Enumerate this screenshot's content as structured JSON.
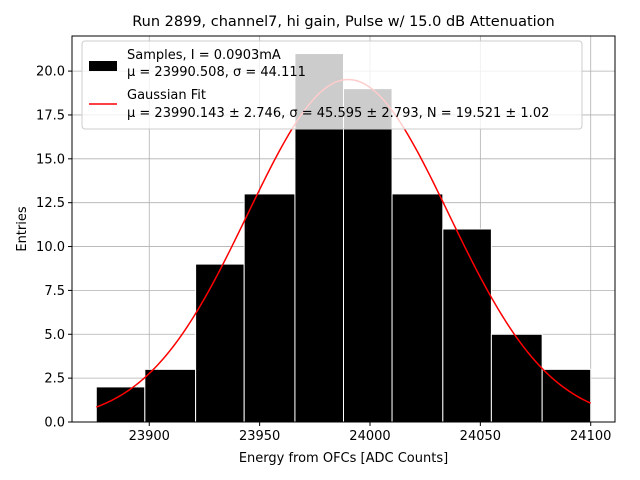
{
  "chart_data": {
    "type": "bar",
    "title": "Run 2899, channel7, hi gain, Pulse w/ 15.0 dB Attenuation",
    "xlabel": "Energy from OFCs [ADC Counts]",
    "ylabel": "Entries",
    "xlim": [
      23865,
      24111
    ],
    "ylim": [
      0,
      22
    ],
    "xticks": [
      23900,
      23950,
      24000,
      24050,
      24100
    ],
    "yticks": [
      0.0,
      2.5,
      5.0,
      7.5,
      10.0,
      12.5,
      15.0,
      17.5,
      20.0
    ],
    "grid": true,
    "legend_position": "top-left",
    "bins": [
      {
        "x0": 23876,
        "x1": 23898,
        "count": 2
      },
      {
        "x0": 23898,
        "x1": 23921,
        "count": 3
      },
      {
        "x0": 23921,
        "x1": 23943,
        "count": 9
      },
      {
        "x0": 23943,
        "x1": 23966,
        "count": 13
      },
      {
        "x0": 23966,
        "x1": 23988,
        "count": 21
      },
      {
        "x0": 23988,
        "x1": 24010,
        "count": 19
      },
      {
        "x0": 24010,
        "x1": 24033,
        "count": 13
      },
      {
        "x0": 24033,
        "x1": 24055,
        "count": 11
      },
      {
        "x0": 24055,
        "x1": 24078,
        "count": 5
      },
      {
        "x0": 24078,
        "x1": 24100,
        "count": 3
      }
    ],
    "fit": {
      "mu": 23990.143,
      "sigma": 45.595,
      "N": 19.521,
      "x_range": [
        23876,
        24100
      ]
    },
    "series": [
      {
        "name": "Samples, I = 0.0903mA",
        "detail": "μ = 23990.508, σ = 44.111",
        "color": "#000000"
      },
      {
        "name": "Gaussian Fit",
        "detail": "μ = 23990.143 ± 2.746, σ = 45.595 ± 2.793, N = 19.521 ± 1.02",
        "color": "#ff0000"
      }
    ]
  }
}
